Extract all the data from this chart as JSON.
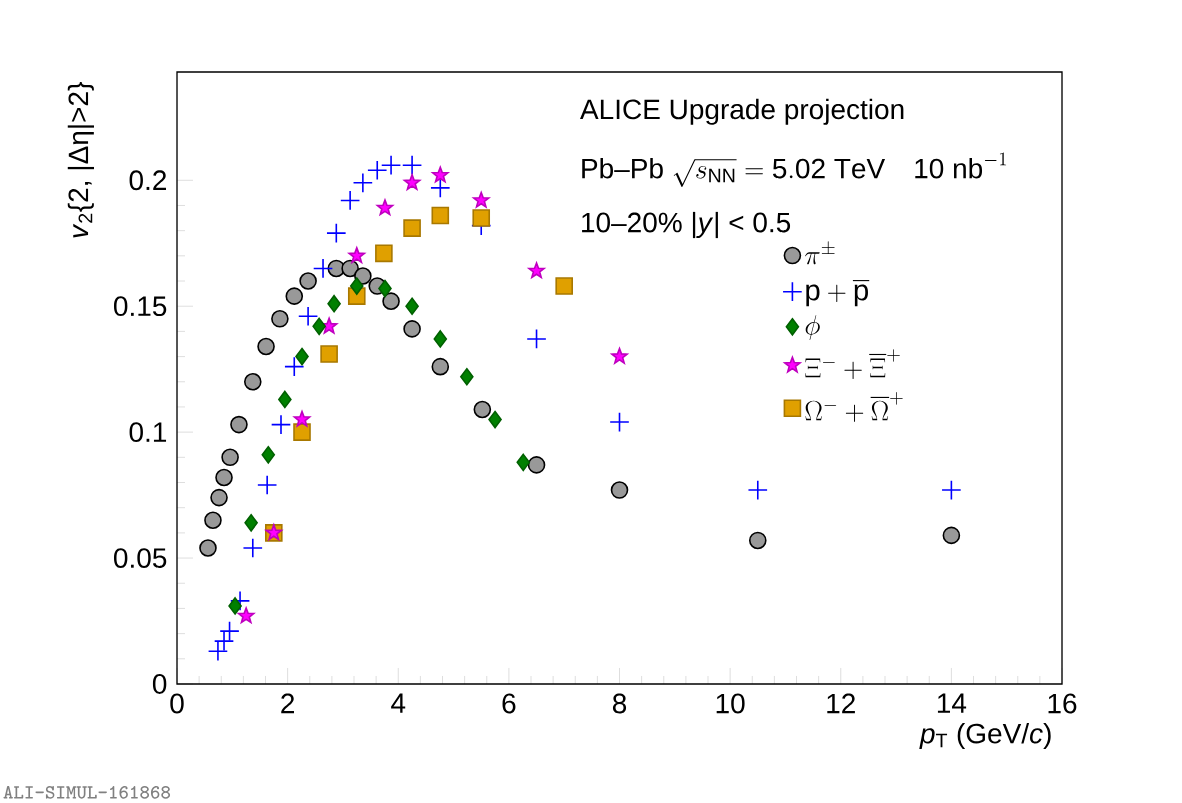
{
  "chart_data": {
    "type": "scatter",
    "xlabel": "*p*$_{T}$ (GeV/*c*)",
    "ylabel": "*v*$_{2}${2, |Δη|>2}",
    "xlim": [
      0,
      16
    ],
    "xticks": [
      0,
      2,
      4,
      6,
      8,
      10,
      12,
      14,
      16
    ],
    "ylim": [
      0,
      0.243
    ],
    "yticks": [
      0,
      {
        "value": 0.05,
        "label": "0.05"
      },
      {
        "value": 0.1,
        "label": "0.1"
      },
      {
        "value": 0.15,
        "label": "0.15"
      },
      {
        "value": 0.2,
        "label": "0.2"
      }
    ],
    "grid": false,
    "legend": "top right",
    "annotations": [
      "ALICE Upgrade projection",
      "\\mathrm{Pb}\\textrm{--}\\mathrm{Pb}\\ \\sqrt{s_{\\mathrm{NN}}} = \\mathrm{5.02\\ TeV}\\quad \\mathrm{10\\ nb}^{-1}",
      "10–20%     |*y*| < 0.5",
      "ALI-SIMUL-161868"
    ],
    "series": [
      {
        "name": "\\pi^{\\pm}",
        "color": "#999999",
        "marker": "circle",
        "x": [
          0.56,
          0.65,
          0.76,
          0.85,
          0.96,
          1.12,
          1.37,
          1.61,
          1.86,
          2.12,
          2.37,
          2.88,
          3.13,
          3.36,
          3.62,
          3.87,
          4.25,
          4.76,
          5.52,
          6.5,
          8.0,
          10.5,
          14.0
        ],
        "values": [
          0.054,
          0.065,
          0.074,
          0.082,
          0.09,
          0.103,
          0.12,
          0.134,
          0.145,
          0.154,
          0.16,
          0.165,
          0.165,
          0.162,
          0.158,
          0.152,
          0.141,
          0.126,
          0.109,
          0.087,
          0.077,
          0.057,
          0.059
        ]
      },
      {
        "name": "\\mathrm{p}+\\overline{\\mathrm{p}}",
        "color": "#0000ff",
        "marker": "cross",
        "x": [
          0.74,
          0.85,
          0.95,
          1.14,
          1.37,
          1.63,
          1.88,
          2.12,
          2.37,
          2.64,
          2.88,
          3.13,
          3.36,
          3.62,
          3.87,
          4.25,
          4.76,
          5.5,
          6.5,
          8.0,
          10.5,
          14.0
        ],
        "values": [
          0.013,
          0.017,
          0.021,
          0.033,
          0.054,
          0.079,
          0.103,
          0.126,
          0.146,
          0.165,
          0.179,
          0.192,
          0.199,
          0.204,
          0.206,
          0.206,
          0.197,
          0.182,
          0.137,
          0.104,
          0.077,
          0.077
        ]
      },
      {
        "name": "\\phi",
        "color": "#008000",
        "marker": "diamond",
        "x": [
          1.05,
          1.34,
          1.65,
          1.95,
          2.26,
          2.57,
          2.84,
          3.25,
          3.76,
          4.25,
          4.76,
          5.24,
          5.75,
          6.26
        ],
        "values": [
          0.031,
          0.064,
          0.091,
          0.113,
          0.13,
          0.142,
          0.151,
          0.158,
          0.157,
          0.15,
          0.137,
          0.122,
          0.105,
          0.088
        ]
      },
      {
        "name": "\\Xi^{-}+\\overline{\\Xi}^{+}",
        "color": "#ff00ff",
        "marker": "star",
        "x": [
          1.25,
          1.75,
          2.26,
          2.75,
          3.25,
          3.76,
          4.25,
          4.76,
          5.5,
          6.5,
          8.0
        ],
        "values": [
          0.027,
          0.06,
          0.105,
          0.142,
          0.17,
          0.189,
          0.199,
          0.202,
          0.192,
          0.164,
          0.13
        ]
      },
      {
        "name": "\\Omega^{-}+\\overline{\\Omega}^{+}",
        "color": "#e0a000",
        "marker": "square",
        "x": [
          1.75,
          2.26,
          2.75,
          3.25,
          3.74,
          4.25,
          4.76,
          5.5,
          7.0
        ],
        "values": [
          0.06,
          0.1,
          0.131,
          0.154,
          0.171,
          0.181,
          0.186,
          0.185,
          0.158
        ]
      }
    ]
  }
}
